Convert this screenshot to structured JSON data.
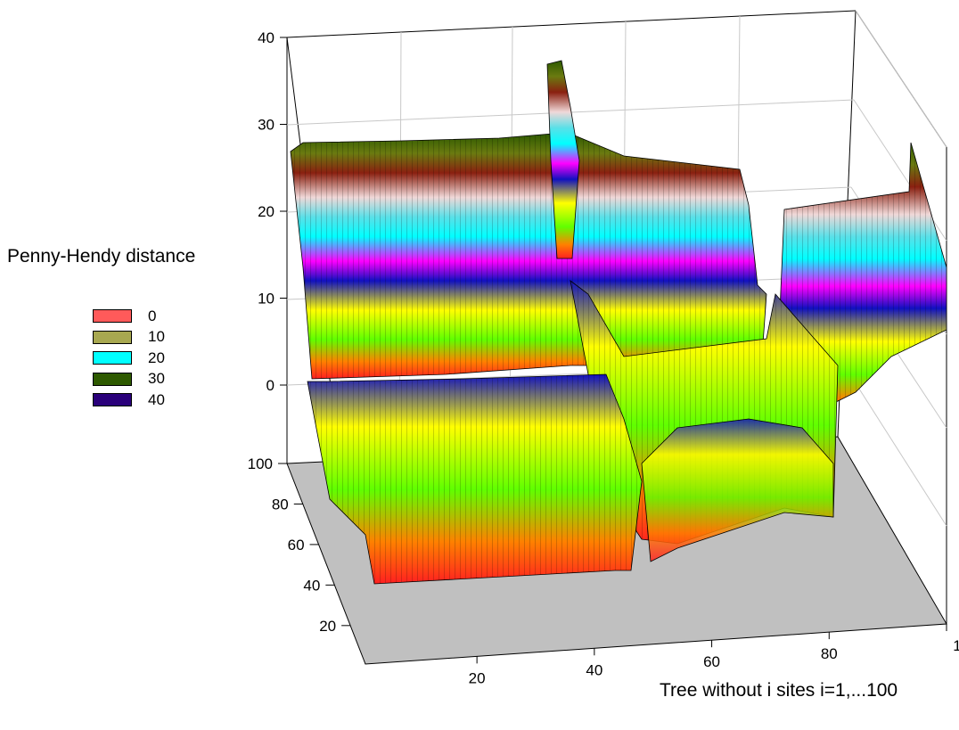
{
  "chart_data": {
    "type": "surface3d",
    "zlabel": "Penny-Hendy distance",
    "xlabel": "Tree without i sites i=1,...100",
    "ylabel": "",
    "xlim": [
      1,
      100
    ],
    "ylim": [
      1,
      100
    ],
    "zlim": [
      0,
      40
    ],
    "x_ticks": [
      "20",
      "40",
      "60",
      "80",
      "1"
    ],
    "y_ticks": [
      "20",
      "40",
      "60",
      "80",
      "100"
    ],
    "z_ticks": [
      "0",
      "10",
      "20",
      "30",
      "40"
    ],
    "legend": {
      "placement": "left",
      "entries": [
        {
          "label": "0",
          "color": "#ff5a5a"
        },
        {
          "label": "10",
          "color": "#a8a850"
        },
        {
          "label": "20",
          "color": "#00ffff"
        },
        {
          "label": "30",
          "color": "#2e5a00"
        },
        {
          "label": "40",
          "color": "#2a007a"
        }
      ]
    },
    "grid": true,
    "floor_color": "#c0c0c0",
    "colormap": "cyclic rainbow: red, green, yellow, blue, magenta, cyan, white, dark red, olive, dark green",
    "bands": [
      {
        "x_range": [
          1,
          42
        ],
        "y_range": [
          1,
          85
        ],
        "z_approx": 2
      },
      {
        "x_range": [
          1,
          40
        ],
        "y_range": [
          85,
          100
        ],
        "z_approx": 25
      },
      {
        "x_range": [
          33,
          36
        ],
        "y_range": [
          85,
          100
        ],
        "z_approx": 37
      },
      {
        "x_range": [
          42,
          70
        ],
        "y_range": [
          1,
          80
        ],
        "z_approx": 8
      },
      {
        "x_range": [
          42,
          75
        ],
        "y_range": [
          80,
          100
        ],
        "z_approx": 23
      },
      {
        "x_range": [
          73,
          100
        ],
        "y_range": [
          70,
          100
        ],
        "z_approx": 25
      },
      {
        "x_range": [
          85,
          100
        ],
        "y_range": [
          40,
          70
        ],
        "z_approx": 13
      }
    ]
  }
}
